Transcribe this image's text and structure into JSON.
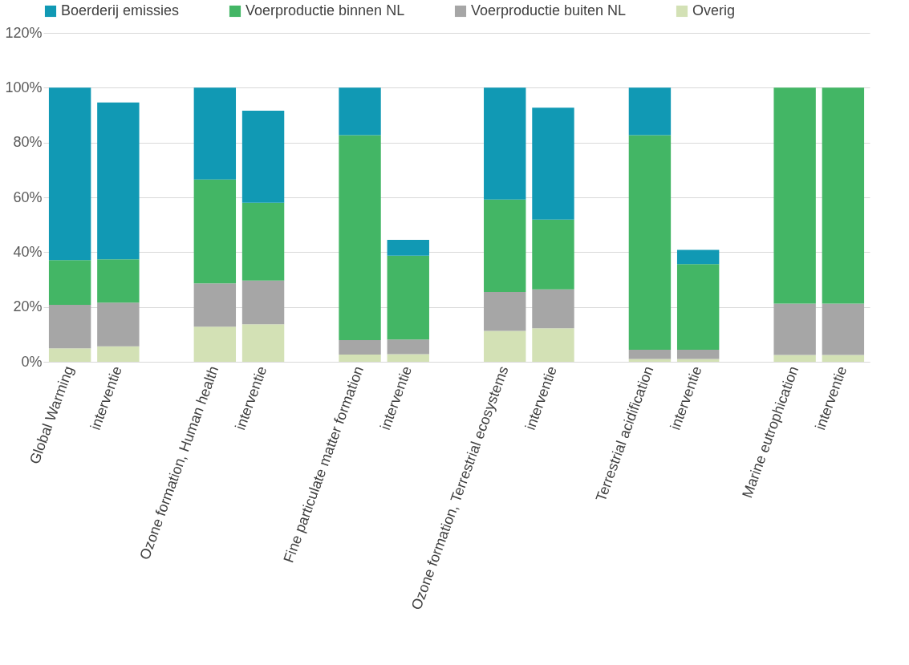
{
  "chart_data": {
    "type": "bar",
    "stacked": true,
    "categories": [
      "Global Warming",
      "interventie",
      null,
      "Ozone formation, Human health",
      "interventie",
      null,
      "Fine particulate matter formation",
      "interventie",
      null,
      "Ozone formation, Terrestrial ecosystems",
      "interventie",
      null,
      "Terrestrial acidification",
      "interventie",
      null,
      "Marine eutrophication",
      "interventie"
    ],
    "series": [
      {
        "name": "Overig",
        "color": "#d3e1b5",
        "values": [
          4.9,
          5.6,
          null,
          12.8,
          13.7,
          null,
          2.6,
          2.8,
          null,
          11.3,
          12.2,
          null,
          1.0,
          1.0,
          null,
          2.5,
          2.5
        ]
      },
      {
        "name": "Voerproductie buiten NL",
        "color": "#a6a6a6",
        "values": [
          15.9,
          16.0,
          null,
          15.8,
          15.9,
          null,
          5.3,
          5.3,
          null,
          14.2,
          14.2,
          null,
          3.4,
          3.4,
          null,
          18.7,
          18.7
        ]
      },
      {
        "name": "Voerproductie binnen NL",
        "color": "#43b665",
        "values": [
          16.3,
          15.8,
          null,
          37.9,
          28.4,
          null,
          74.8,
          30.6,
          null,
          33.7,
          25.5,
          null,
          78.3,
          31.2,
          null,
          78.8,
          78.8
        ]
      },
      {
        "name": "Boerderij emissies",
        "color": "#1199b4",
        "values": [
          62.9,
          57.2,
          null,
          33.5,
          33.6,
          null,
          17.3,
          5.8,
          null,
          40.8,
          40.8,
          null,
          17.3,
          5.2,
          null,
          null,
          null
        ]
      }
    ],
    "ylim": [
      0,
      120
    ],
    "yticks": [
      {
        "value": 0,
        "label": "0%"
      },
      {
        "value": 20,
        "label": "20%"
      },
      {
        "value": 40,
        "label": "40%"
      },
      {
        "value": 60,
        "label": "60%"
      },
      {
        "value": 80,
        "label": "80%"
      },
      {
        "value": 100,
        "label": "100%"
      },
      {
        "value": 120,
        "label": "120%"
      }
    ],
    "grid": "y",
    "legend": "top"
  }
}
